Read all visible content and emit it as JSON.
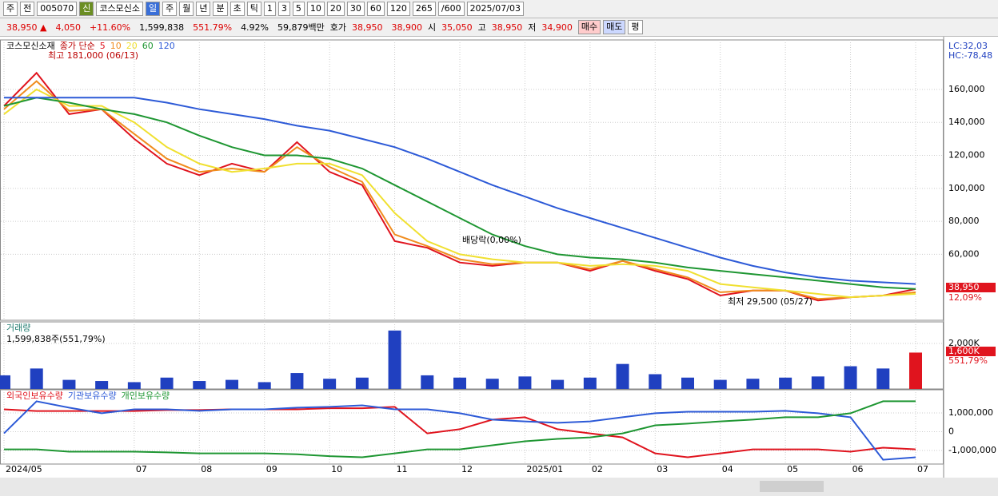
{
  "toolbar": {
    "items": [
      "주",
      "전",
      "005070",
      "신",
      "코스모신소",
      "일",
      "주",
      "월",
      "년",
      "분",
      "초",
      "틱",
      "1",
      "3",
      "5",
      "10",
      "20",
      "30",
      "60",
      "120",
      "265",
      "/600",
      "2025/07/03"
    ]
  },
  "quote": {
    "price": "38,950 ▲",
    "change": "4,050",
    "rate": "+11.60%",
    "volume": "1,599,838",
    "vol_rate": "551.79%",
    "turnover": "4.92%",
    "amount": "59,879백만",
    "ask_label": "호가",
    "ask": "38,950",
    "bid": "38,900",
    "open_label": "시",
    "open": "35,050",
    "high_label": "고",
    "high": "38,950",
    "low_label": "저",
    "low": "34,900",
    "buy": "매수",
    "sell": "매도",
    "eval": "평"
  },
  "chart_data": [
    {
      "type": "line",
      "title": "코스모신소재",
      "legend_title": "종가 단순",
      "categories": [
        "2024/05",
        null,
        null,
        null,
        "07",
        null,
        "08",
        null,
        "09",
        null,
        "10",
        null,
        "11",
        null,
        "12",
        null,
        "2025/01",
        null,
        "02",
        null,
        "03",
        null,
        "04",
        null,
        "05",
        null,
        "06",
        null,
        "07"
      ],
      "ylim": [
        20000,
        190000
      ],
      "yticks": [
        {
          "value": 60000,
          "label": "60,000"
        },
        {
          "value": 80000,
          "label": "80,000"
        },
        {
          "value": 100000,
          "label": "100,000"
        },
        {
          "value": 120000,
          "label": "120,000"
        },
        {
          "value": 140000,
          "label": "140,000"
        },
        {
          "value": 160000,
          "label": "160,000"
        }
      ],
      "grid": true,
      "series": [
        {
          "name": "5",
          "color": "#e0141e",
          "values": [
            150000,
            170000,
            145000,
            148000,
            130000,
            115000,
            108000,
            115000,
            110000,
            128000,
            110000,
            102000,
            68000,
            64000,
            55000,
            53000,
            55000,
            55000,
            50000,
            56000,
            50000,
            45000,
            35000,
            38000,
            38000,
            32000,
            34000,
            35000,
            38950
          ]
        },
        {
          "name": "10",
          "color": "#f08c1e",
          "values": [
            148000,
            165000,
            147000,
            148000,
            133000,
            118000,
            110000,
            112000,
            110000,
            125000,
            113000,
            104000,
            72000,
            65000,
            57000,
            54000,
            55000,
            55000,
            51000,
            56000,
            51000,
            46000,
            37000,
            38000,
            38000,
            33000,
            34000,
            35000,
            37000
          ]
        },
        {
          "name": "20",
          "color": "#f0e030",
          "values": [
            145000,
            160000,
            150000,
            150000,
            140000,
            125000,
            115000,
            110000,
            112000,
            115000,
            115000,
            108000,
            85000,
            68000,
            60000,
            57000,
            55000,
            55000,
            53000,
            54000,
            53000,
            50000,
            42000,
            40000,
            38000,
            36000,
            34000,
            35000,
            36000
          ]
        },
        {
          "name": "60",
          "color": "#1e9632",
          "values": [
            150000,
            155000,
            152000,
            148000,
            145000,
            140000,
            132000,
            125000,
            120000,
            120000,
            118000,
            112000,
            102000,
            92000,
            82000,
            72000,
            65000,
            60000,
            58000,
            57000,
            55000,
            52000,
            50000,
            48000,
            46000,
            44000,
            42000,
            40000,
            39000
          ]
        },
        {
          "name": "120",
          "color": "#2d5ad7",
          "values": [
            155000,
            155000,
            155000,
            155000,
            155000,
            152000,
            148000,
            145000,
            142000,
            138000,
            135000,
            130000,
            125000,
            118000,
            110000,
            102000,
            95000,
            88000,
            82000,
            76000,
            70000,
            64000,
            58000,
            53000,
            49000,
            46000,
            44000,
            43000,
            42000
          ]
        }
      ],
      "annotations": [
        "최고 181,000 (06/13)",
        "배당락(0,00%)",
        "최저 29,500 (05/27)"
      ],
      "right_labels": [
        "LC:32,03",
        "HC:-78,48",
        "38,950",
        "12,09%"
      ]
    },
    {
      "type": "bar",
      "subtitle": "1,599,838주(551,79%)",
      "ylim": [
        0,
        2950000
      ],
      "yticks": [
        {
          "value": 2000000,
          "label": "2,000K"
        }
      ],
      "series": [
        {
          "name": "거래량",
          "color": "#2040c0",
          "values": [
            600000,
            900000,
            400000,
            350000,
            300000,
            500000,
            350000,
            400000,
            300000,
            700000,
            450000,
            500000,
            2570000,
            600000,
            500000,
            450000,
            550000,
            400000,
            500000,
            1100000,
            650000,
            500000,
            400000,
            450000,
            500000,
            550000,
            1000000,
            900000,
            1600000
          ]
        }
      ],
      "right_labels": [
        "1,600K",
        "551,79%"
      ]
    },
    {
      "type": "line",
      "ylim": [
        -1720000,
        2230000
      ],
      "yticks": [
        {
          "value": -1000000,
          "label": "-1,000,000"
        },
        0,
        {
          "value": 1000000,
          "label": "1,000,000"
        }
      ],
      "series": [
        {
          "name": "외국인보유수량",
          "color": "#e0141e",
          "values": [
            1190000,
            1100000,
            1100000,
            1100000,
            1100000,
            1150000,
            1150000,
            1190000,
            1190000,
            1190000,
            1250000,
            1250000,
            1320000,
            -90000,
            130000,
            640000,
            770000,
            130000,
            -90000,
            -300000,
            -1150000,
            -1360000,
            -1150000,
            -940000,
            -940000,
            -940000,
            -1060000,
            -850000,
            -940000
          ]
        },
        {
          "name": "기관보유수량",
          "color": "#2d5ad7",
          "values": [
            -90000,
            1620000,
            1280000,
            980000,
            1190000,
            1190000,
            1110000,
            1190000,
            1190000,
            1280000,
            1320000,
            1400000,
            1190000,
            1190000,
            980000,
            640000,
            550000,
            470000,
            550000,
            770000,
            980000,
            1060000,
            1060000,
            1060000,
            1110000,
            980000,
            770000,
            -1490000,
            -1360000
          ]
        },
        {
          "name": "개인보유수량",
          "color": "#1e9632",
          "values": [
            -940000,
            -940000,
            -1060000,
            -1060000,
            -1060000,
            -1100000,
            -1150000,
            -1150000,
            -1150000,
            -1200000,
            -1300000,
            -1360000,
            -1150000,
            -940000,
            -940000,
            -720000,
            -510000,
            -380000,
            -300000,
            -90000,
            340000,
            430000,
            550000,
            640000,
            770000,
            770000,
            980000,
            1620000,
            1620000
          ]
        }
      ]
    }
  ]
}
